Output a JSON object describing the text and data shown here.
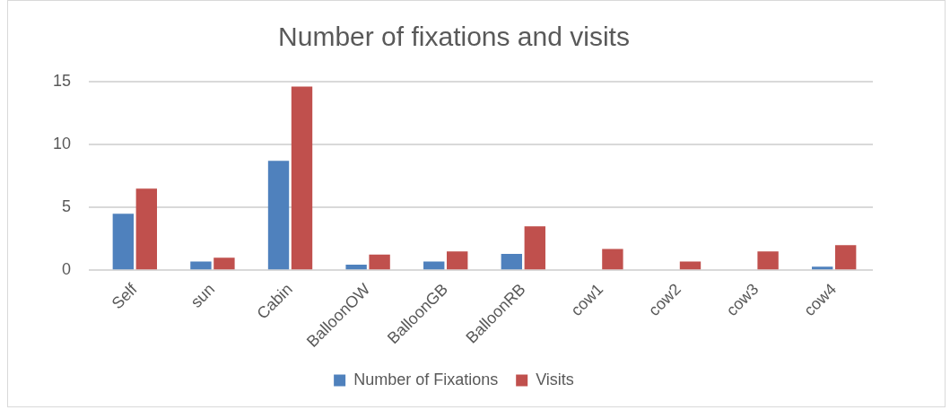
{
  "chart_data": {
    "type": "bar",
    "title": "Number of fixations and visits",
    "categories": [
      "Self",
      "sun",
      "Cabin",
      "BalloonOW",
      "BalloonGB",
      "BalloonRB",
      "cow1",
      "cow2",
      "cow3",
      "cow4"
    ],
    "series": [
      {
        "name": "Number of Fixations",
        "color": "#4f81bd",
        "values": [
          4.5,
          0.7,
          8.7,
          0.45,
          0.7,
          1.3,
          0,
          0,
          0,
          0.3
        ]
      },
      {
        "name": "Visits",
        "color": "#c0504d",
        "values": [
          6.5,
          1.0,
          14.6,
          1.26,
          1.5,
          3.5,
          1.7,
          0.7,
          1.5,
          2.0
        ]
      }
    ],
    "ylim": [
      0,
      15
    ],
    "yticks": [
      0,
      5,
      10,
      15
    ],
    "grid": "y",
    "legend": "bottom"
  }
}
